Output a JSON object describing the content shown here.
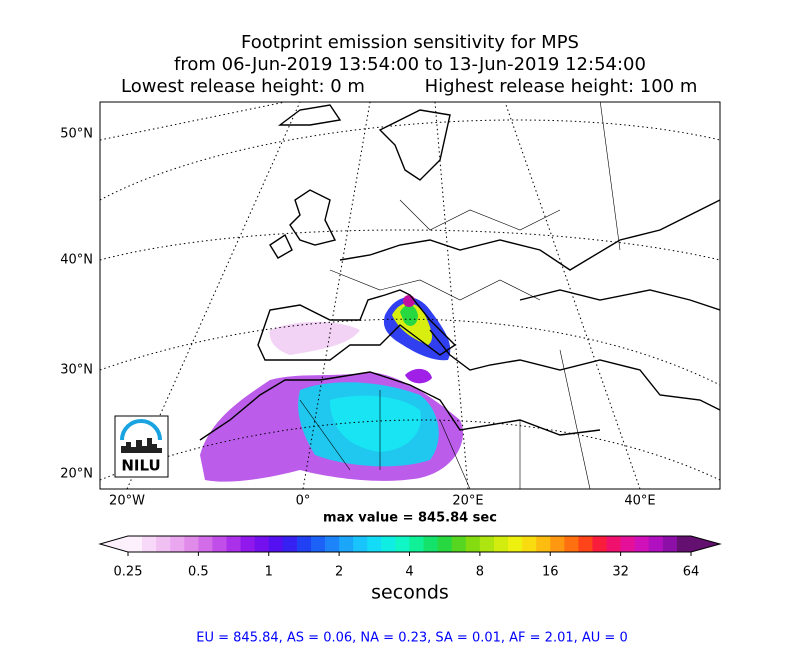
{
  "title": [
    "Footprint emission sensitivity for MPS",
    "from 06-Jun-2019 13:54:00 to 13-Jun-2019 12:54:00",
    "Lowest release height: 0 m",
    "Highest release height: 100 m"
  ],
  "map": {
    "lat_labels": [
      "50°N",
      "40°N",
      "30°N",
      "20°N"
    ],
    "lon_labels": [
      "20°W",
      "0°",
      "20°E",
      "40°E"
    ],
    "logo": "NILU"
  },
  "max_value": "max value = 845.84 sec",
  "colorbar": {
    "label": "seconds",
    "log": true,
    "lim": [
      0.25,
      64
    ],
    "ticks": [
      0.25,
      0.5,
      1,
      2,
      4,
      8,
      16,
      32,
      64
    ],
    "colors": [
      "#fdf0fd",
      "#f8d8f8",
      "#f1c0f3",
      "#eaa6ef",
      "#e08aea",
      "#d26ce8",
      "#c14ee8",
      "#ab30ea",
      "#9018ec",
      "#7410ee",
      "#5410f0",
      "#3620f2",
      "#2040f4",
      "#1c62f6",
      "#1c84f8",
      "#1ca6fa",
      "#18c4fb",
      "#14dcf6",
      "#10eee4",
      "#10f6c4",
      "#10f096",
      "#14e26a",
      "#28d840",
      "#56d620",
      "#84dc10",
      "#aee410",
      "#d2ec10",
      "#eef010",
      "#f8dc10",
      "#fcbc10",
      "#fe9810",
      "#fe7010",
      "#fe4418",
      "#fa1c3c",
      "#f0106e",
      "#e4109a",
      "#d010b8",
      "#b010c0",
      "#8c10a8",
      "#641070"
    ]
  },
  "footer": "EU = 845.84,  AS = 0.06,  NA = 0.23,  SA = 0.01,  AF = 2.01,  AU = 0"
}
